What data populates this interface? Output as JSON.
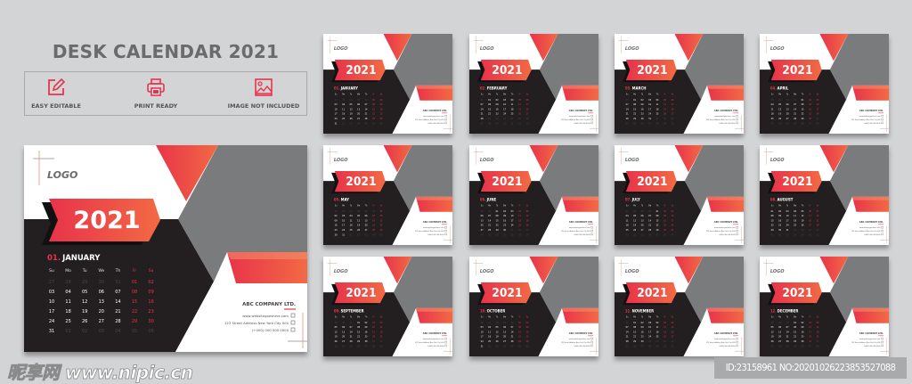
{
  "header": {
    "title": "DESK CALENDAR 2021"
  },
  "features": [
    {
      "icon": "edit-icon",
      "label": "EASY EDITABLE"
    },
    {
      "icon": "printer-icon",
      "label": "PRINT READY"
    },
    {
      "icon": "image-icon",
      "label": "IMAGE NOT INCLUDED"
    }
  ],
  "colors": {
    "accent": "#e8334a",
    "accent_2": "#f26a44",
    "dark": "#231f20",
    "gray": "#7a7b7d",
    "background": "#d3d4d6"
  },
  "calendar": {
    "logo": "LOGO",
    "year": "2021",
    "weekdays": [
      "Su",
      "Mo",
      "Tu",
      "We",
      "Th",
      "Fr",
      "Sa"
    ],
    "company": {
      "name": "ABC COMPANY LTD.",
      "website": "www.websitegoeshere.com",
      "address": "123 Street Address New York City 000",
      "phone": "(+000) 000 000 0000"
    },
    "january_days": [
      [
        "27",
        "28",
        "29",
        "30",
        "31",
        "01",
        "02"
      ],
      [
        "03",
        "04",
        "05",
        "06",
        "07",
        "08",
        "09"
      ],
      [
        "10",
        "11",
        "12",
        "13",
        "14",
        "15",
        "16"
      ],
      [
        "17",
        "18",
        "19",
        "20",
        "21",
        "22",
        "23"
      ],
      [
        "24",
        "25",
        "26",
        "27",
        "28",
        "29",
        "30"
      ],
      [
        "31",
        "01",
        "02",
        "03",
        "04",
        "05",
        "06"
      ]
    ]
  },
  "months": [
    {
      "num": "01.",
      "name": "JANUARY"
    },
    {
      "num": "02.",
      "name": "FEBRUARY"
    },
    {
      "num": "03.",
      "name": "MARCH"
    },
    {
      "num": "04.",
      "name": "APRIL"
    },
    {
      "num": "05.",
      "name": "MAY"
    },
    {
      "num": "06.",
      "name": "JUNE"
    },
    {
      "num": "07.",
      "name": "JULY"
    },
    {
      "num": "08.",
      "name": "AUGUST"
    },
    {
      "num": "09.",
      "name": "SEPTEMBER"
    },
    {
      "num": "10.",
      "name": "OCTOBER"
    },
    {
      "num": "11.",
      "name": "NOVEMBER"
    },
    {
      "num": "12.",
      "name": "DECEMBER"
    }
  ],
  "watermark": {
    "site": "昵享网 www.nipic.cn",
    "id": "ID:23158961 NO:20201026223853527088"
  }
}
